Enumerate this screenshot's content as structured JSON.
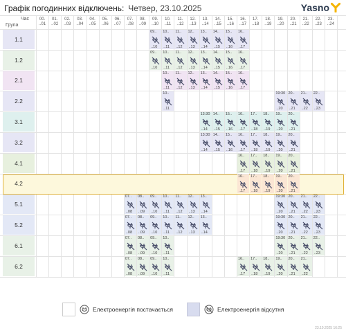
{
  "title": "Графік погодинних відключень:",
  "date": "Четвер, 23.10.2025",
  "brand": "Yasno",
  "header": {
    "corner_top": "Час",
    "corner_bottom": "Група",
    "hours": [
      [
        "00.",
        "..01"
      ],
      [
        "01.",
        "..02"
      ],
      [
        "02.",
        "..03"
      ],
      [
        "03.",
        "..04"
      ],
      [
        "04.",
        "..05"
      ],
      [
        "05.",
        "..06"
      ],
      [
        "06.",
        "..07"
      ],
      [
        "07.",
        "..08"
      ],
      [
        "08.",
        "..09"
      ],
      [
        "09.",
        "..10"
      ],
      [
        "10.",
        "..11"
      ],
      [
        "11.",
        "..12"
      ],
      [
        "12.",
        "..13"
      ],
      [
        "13.",
        "..14"
      ],
      [
        "14.",
        "..15"
      ],
      [
        "15.",
        "..16"
      ],
      [
        "16.",
        "..17"
      ],
      [
        "17.",
        "..18"
      ],
      [
        "18.",
        "..19"
      ],
      [
        "19.",
        "..20"
      ],
      [
        "20.",
        "..21"
      ],
      [
        "21.",
        "..22"
      ],
      [
        "22.",
        "..23"
      ],
      [
        "23.",
        "..24"
      ]
    ]
  },
  "colors": {
    "group_1": "#e6e6f5",
    "group_2": "#e8f1e7",
    "group_3": "#def0ee",
    "group_4": "#e7f0de",
    "group_5": "#e3e8f6",
    "group_6": "#e8f1e7",
    "group_2_1": "#f1e4f3",
    "highlight_cell": "#fbe6d4",
    "highlight_border": "#e0b23a"
  },
  "highlighted_group": "4.2",
  "groups": [
    {
      "label": "1.1",
      "color": "group_1",
      "outages": [
        {
          "h": 9,
          "t1": "09.."
        },
        {
          "h": 10,
          "t1": "10.."
        },
        {
          "h": 11,
          "t1": "11.."
        },
        {
          "h": 12,
          "t1": "12.."
        },
        {
          "h": 13,
          "t1": "13.."
        },
        {
          "h": 14,
          "t1": "14.."
        },
        {
          "h": 15,
          "t1": "15.."
        },
        {
          "h": 16,
          "t1": "16.."
        }
      ]
    },
    {
      "label": "1.2",
      "color": "group_2",
      "outages": [
        {
          "h": 9,
          "t1": "09.."
        },
        {
          "h": 10,
          "t1": "10.."
        },
        {
          "h": 11,
          "t1": "11.."
        },
        {
          "h": 12,
          "t1": "12.."
        },
        {
          "h": 13,
          "t1": "13.."
        },
        {
          "h": 14,
          "t1": "14.."
        },
        {
          "h": 15,
          "t1": "15.."
        },
        {
          "h": 16,
          "t1": "16.."
        }
      ]
    },
    {
      "label": "2.1",
      "color": "group_2_1",
      "outages": [
        {
          "h": 10,
          "t1": "10.."
        },
        {
          "h": 11,
          "t1": "11.."
        },
        {
          "h": 12,
          "t1": "12.."
        },
        {
          "h": 13,
          "t1": "13.."
        },
        {
          "h": 14,
          "t1": "14.."
        },
        {
          "h": 15,
          "t1": "15.."
        },
        {
          "h": 16,
          "t1": "16.."
        }
      ]
    },
    {
      "label": "2.2",
      "color": "group_1",
      "outages": [
        {
          "h": 10,
          "t1": "10.."
        },
        {
          "h": 19,
          "t1": "19:30"
        },
        {
          "h": 20,
          "t1": "20.."
        },
        {
          "h": 21,
          "t1": "21.."
        },
        {
          "h": 22,
          "t1": "22.."
        }
      ]
    },
    {
      "label": "3.1",
      "color": "group_3",
      "outages": [
        {
          "h": 13,
          "t1": "13:30"
        },
        {
          "h": 14,
          "t1": "14.."
        },
        {
          "h": 15,
          "t1": "15.."
        },
        {
          "h": 16,
          "t1": "16.."
        },
        {
          "h": 17,
          "t1": "17.."
        },
        {
          "h": 18,
          "t1": "18.."
        },
        {
          "h": 19,
          "t1": "19.."
        },
        {
          "h": 20,
          "t1": "20.."
        }
      ]
    },
    {
      "label": "3.2",
      "color": "group_1",
      "outages": [
        {
          "h": 13,
          "t1": "13:30"
        },
        {
          "h": 14,
          "t1": "14.."
        },
        {
          "h": 15,
          "t1": "15.."
        },
        {
          "h": 16,
          "t1": "16.."
        },
        {
          "h": 17,
          "t1": "17.."
        },
        {
          "h": 18,
          "t1": "18.."
        },
        {
          "h": 19,
          "t1": "19.."
        },
        {
          "h": 20,
          "t1": "20.."
        }
      ]
    },
    {
      "label": "4.1",
      "color": "group_4",
      "outages": [
        {
          "h": 16,
          "t1": "16.."
        },
        {
          "h": 17,
          "t1": "17.."
        },
        {
          "h": 18,
          "t1": "18.."
        },
        {
          "h": 19,
          "t1": "19.."
        },
        {
          "h": 20,
          "t1": "20.."
        }
      ]
    },
    {
      "label": "4.2",
      "color": "highlight_cell",
      "outages": [
        {
          "h": 16,
          "t1": "16.."
        },
        {
          "h": 17,
          "t1": "17.."
        },
        {
          "h": 18,
          "t1": "18.."
        },
        {
          "h": 19,
          "t1": "19.."
        },
        {
          "h": 20,
          "t1": "20.."
        }
      ]
    },
    {
      "label": "5.1",
      "color": "group_5",
      "outages": [
        {
          "h": 7,
          "t1": "07.."
        },
        {
          "h": 8,
          "t1": "08.."
        },
        {
          "h": 9,
          "t1": "09.."
        },
        {
          "h": 10,
          "t1": "10.."
        },
        {
          "h": 11,
          "t1": "11.."
        },
        {
          "h": 12,
          "t1": "12.."
        },
        {
          "h": 13,
          "t1": "13.."
        },
        {
          "h": 19,
          "t1": "19:30"
        },
        {
          "h": 20,
          "t1": "20.."
        },
        {
          "h": 21,
          "t1": "21.."
        },
        {
          "h": 22,
          "t1": "22.."
        }
      ]
    },
    {
      "label": "5.2",
      "color": "group_5",
      "outages": [
        {
          "h": 7,
          "t1": "07.."
        },
        {
          "h": 8,
          "t1": "08.."
        },
        {
          "h": 9,
          "t1": "09.."
        },
        {
          "h": 10,
          "t1": "10.."
        },
        {
          "h": 11,
          "t1": "11.."
        },
        {
          "h": 12,
          "t1": "12.."
        },
        {
          "h": 13,
          "t1": "13.."
        },
        {
          "h": 19,
          "t1": "19:30"
        },
        {
          "h": 20,
          "t1": "20.."
        },
        {
          "h": 21,
          "t1": "21.."
        },
        {
          "h": 22,
          "t1": "22.."
        }
      ]
    },
    {
      "label": "6.1",
      "color": "group_6",
      "outages": [
        {
          "h": 7,
          "t1": "07.."
        },
        {
          "h": 8,
          "t1": "08.."
        },
        {
          "h": 9,
          "t1": "09.."
        },
        {
          "h": 10,
          "t1": "10.."
        },
        {
          "h": 19,
          "t1": "19:30"
        },
        {
          "h": 20,
          "t1": "20.."
        },
        {
          "h": 21,
          "t1": "21.."
        },
        {
          "h": 22,
          "t1": "22.."
        }
      ]
    },
    {
      "label": "6.2",
      "color": "group_6",
      "outages": [
        {
          "h": 7,
          "t1": "07.."
        },
        {
          "h": 8,
          "t1": "08.."
        },
        {
          "h": 9,
          "t1": "09.."
        },
        {
          "h": 10,
          "t1": "10.."
        },
        {
          "h": 16,
          "t1": "16.."
        },
        {
          "h": 17,
          "t1": "17.."
        },
        {
          "h": 18,
          "t1": "18.."
        },
        {
          "h": 19,
          "t1": "19.."
        },
        {
          "h": 20,
          "t1": "20.."
        },
        {
          "h": 21,
          "t1": "21.."
        }
      ]
    }
  ],
  "legend": {
    "on_label": "Електроенергія постачається",
    "off_label": "Електроенергія відсутня",
    "on_icon": "plug-icon",
    "off_icon": "power-off-icon"
  },
  "stamp": "23.10.2025  16:25"
}
